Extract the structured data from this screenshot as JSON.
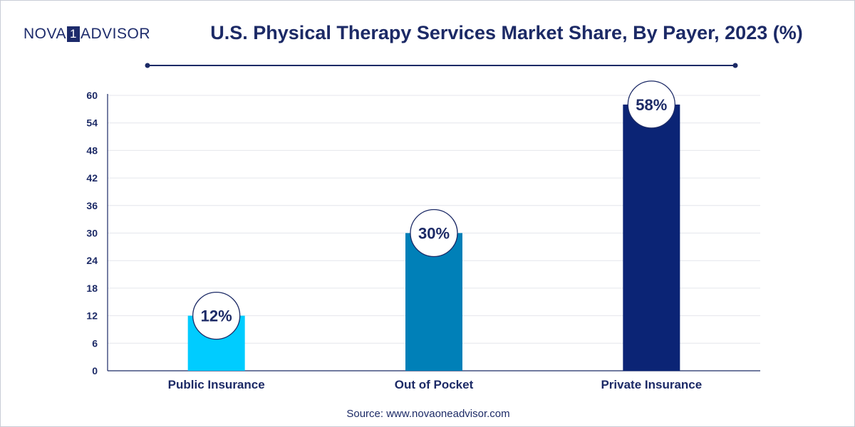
{
  "brand": {
    "logo_left": "NOVA",
    "logo_mark": "1",
    "logo_right": "ADVISOR"
  },
  "header": {
    "title": "U.S. Physical Therapy Services Market Share, By Payer, 2023 (%)"
  },
  "footer": {
    "source": "Source: www.novaoneadvisor.com"
  },
  "chart_data": {
    "type": "bar",
    "title": "U.S. Physical Therapy Services Market Share, By Payer, 2023 (%)",
    "xlabel": "",
    "ylabel": "",
    "categories": [
      "Public Insurance",
      "Out of Pocket",
      "Private Insurance"
    ],
    "values": [
      12,
      30,
      58
    ],
    "data_labels": [
      "12%",
      "30%",
      "58%"
    ],
    "colors": [
      "#00ccff",
      "#0080b8",
      "#0b2475"
    ],
    "ylim": [
      0,
      60
    ],
    "yticks": [
      0,
      6,
      12,
      18,
      24,
      30,
      36,
      42,
      48,
      54,
      60
    ],
    "grid": true,
    "legend": "none"
  }
}
